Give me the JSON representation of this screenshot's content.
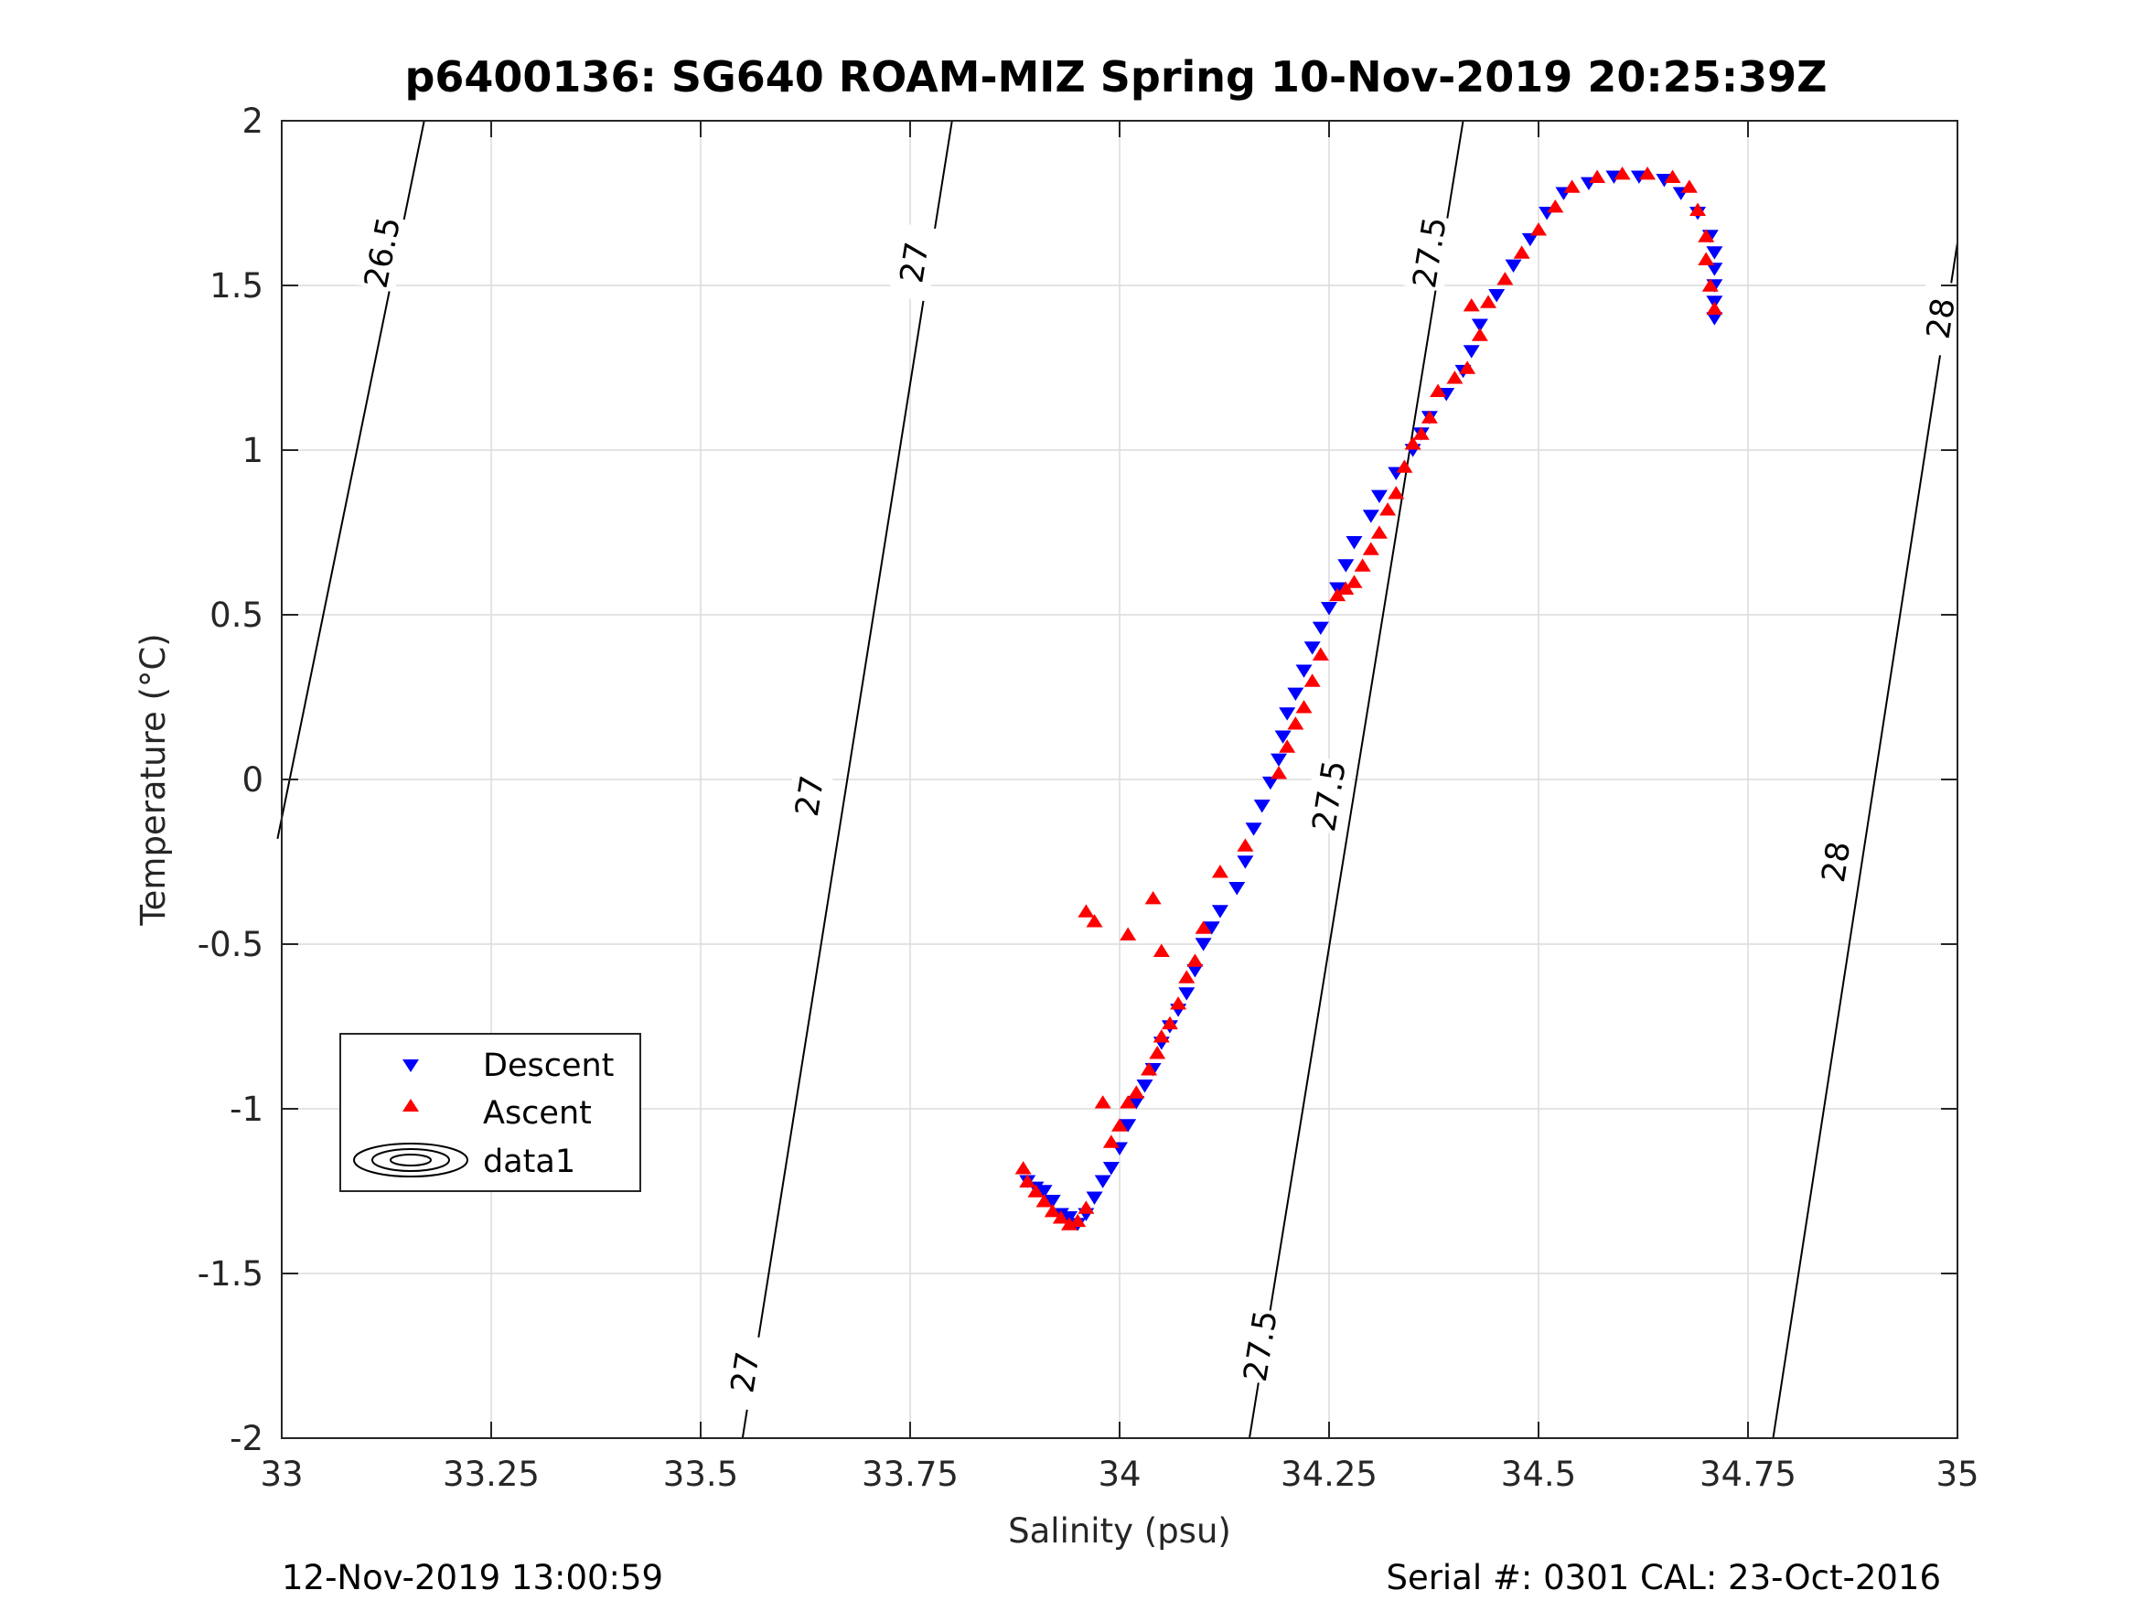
{
  "chart_data": {
    "type": "scatter",
    "title": "p6400136: SG640 ROAM-MIZ Spring 10-Nov-2019 20:25:39Z",
    "xlabel": "Salinity (psu)",
    "ylabel": "Temperature (°C)",
    "xlim": [
      33,
      35
    ],
    "ylim": [
      -2,
      2
    ],
    "grid": true,
    "x_ticks": [
      33,
      33.25,
      33.5,
      33.75,
      34,
      34.25,
      34.5,
      34.75,
      35
    ],
    "x_tick_labels": [
      "33",
      "33.25",
      "33.5",
      "33.75",
      "34",
      "34.25",
      "34.5",
      "34.75",
      "35"
    ],
    "y_ticks": [
      2,
      1.5,
      1,
      0.5,
      0,
      -0.5,
      -1,
      -1.5,
      -2
    ],
    "y_tick_labels": [
      "2",
      "1.5",
      "1",
      "0.5",
      "0",
      "-0.5",
      "-1",
      "-1.5",
      "-2"
    ],
    "legend_position": "lower-left",
    "footer_left": "12-Nov-2019 13:00:59",
    "footer_right": "Serial #: 0301  CAL: 23-Oct-2016",
    "colors": {
      "descent": "#0000ff",
      "ascent": "#ff0000",
      "contour": "#000000",
      "grid": "#dcdcdc"
    },
    "contours": [
      {
        "level": "26.5",
        "line": [
          [
            32.995,
            -0.18
          ],
          [
            33.17,
            2.0
          ]
        ],
        "labels": [
          {
            "x": 33.12,
            "y": 1.6,
            "text": "26.5"
          }
        ]
      },
      {
        "level": "27",
        "line": [
          [
            33.55,
            -2.0
          ],
          [
            33.8,
            2.0
          ]
        ],
        "labels": [
          {
            "x": 33.553,
            "y": -1.8,
            "text": "27"
          },
          {
            "x": 33.63,
            "y": -0.05,
            "text": "27"
          },
          {
            "x": 33.755,
            "y": 1.57,
            "text": "27"
          }
        ]
      },
      {
        "level": "27.5",
        "line": [
          [
            34.155,
            -2.0
          ],
          [
            34.41,
            2.0
          ]
        ],
        "labels": [
          {
            "x": 34.168,
            "y": -1.72,
            "text": "27.5"
          },
          {
            "x": 34.25,
            "y": -0.05,
            "text": "27.5"
          },
          {
            "x": 34.37,
            "y": 1.6,
            "text": "27.5"
          }
        ]
      },
      {
        "level": "28",
        "line": [
          [
            34.78,
            -2.0
          ],
          [
            35.0,
            1.63
          ]
        ],
        "labels": [
          {
            "x": 34.855,
            "y": -0.25,
            "text": "28"
          },
          {
            "x": 34.98,
            "y": 1.4,
            "text": "28"
          }
        ]
      }
    ],
    "series": [
      {
        "name": "Descent",
        "marker": "down-triangle",
        "points": [
          [
            34.71,
            1.4
          ],
          [
            34.71,
            1.45
          ],
          [
            34.71,
            1.5
          ],
          [
            34.71,
            1.55
          ],
          [
            34.71,
            1.6
          ],
          [
            34.705,
            1.65
          ],
          [
            34.69,
            1.72
          ],
          [
            34.67,
            1.78
          ],
          [
            34.65,
            1.82
          ],
          [
            34.62,
            1.83
          ],
          [
            34.59,
            1.83
          ],
          [
            34.56,
            1.81
          ],
          [
            34.53,
            1.78
          ],
          [
            34.51,
            1.72
          ],
          [
            34.49,
            1.64
          ],
          [
            34.47,
            1.56
          ],
          [
            34.45,
            1.47
          ],
          [
            34.43,
            1.38
          ],
          [
            34.42,
            1.3
          ],
          [
            34.41,
            1.24
          ],
          [
            34.39,
            1.17
          ],
          [
            34.37,
            1.1
          ],
          [
            34.36,
            1.05
          ],
          [
            34.35,
            1.0
          ],
          [
            34.33,
            0.93
          ],
          [
            34.31,
            0.86
          ],
          [
            34.3,
            0.8
          ],
          [
            34.28,
            0.72
          ],
          [
            34.27,
            0.65
          ],
          [
            34.26,
            0.58
          ],
          [
            34.25,
            0.52
          ],
          [
            34.24,
            0.46
          ],
          [
            34.23,
            0.4
          ],
          [
            34.22,
            0.33
          ],
          [
            34.21,
            0.26
          ],
          [
            34.2,
            0.2
          ],
          [
            34.195,
            0.13
          ],
          [
            34.19,
            0.06
          ],
          [
            34.18,
            -0.01
          ],
          [
            34.17,
            -0.08
          ],
          [
            34.16,
            -0.15
          ],
          [
            34.15,
            -0.25
          ],
          [
            34.14,
            -0.33
          ],
          [
            34.12,
            -0.4
          ],
          [
            34.11,
            -0.45
          ],
          [
            34.1,
            -0.5
          ],
          [
            34.09,
            -0.58
          ],
          [
            34.08,
            -0.65
          ],
          [
            34.07,
            -0.7
          ],
          [
            34.06,
            -0.75
          ],
          [
            34.05,
            -0.8
          ],
          [
            34.04,
            -0.88
          ],
          [
            34.03,
            -0.93
          ],
          [
            34.02,
            -0.98
          ],
          [
            34.01,
            -1.05
          ],
          [
            34.0,
            -1.12
          ],
          [
            33.99,
            -1.18
          ],
          [
            33.98,
            -1.22
          ],
          [
            33.97,
            -1.27
          ],
          [
            33.96,
            -1.32
          ],
          [
            33.95,
            -1.35
          ],
          [
            33.94,
            -1.33
          ],
          [
            33.93,
            -1.32
          ],
          [
            33.92,
            -1.28
          ],
          [
            33.91,
            -1.25
          ],
          [
            33.9,
            -1.24
          ],
          [
            33.89,
            -1.22
          ]
        ]
      },
      {
        "name": "Ascent",
        "marker": "up-triangle",
        "points": [
          [
            34.71,
            1.43
          ],
          [
            34.705,
            1.5
          ],
          [
            34.7,
            1.58
          ],
          [
            34.7,
            1.65
          ],
          [
            34.69,
            1.73
          ],
          [
            34.68,
            1.8
          ],
          [
            34.66,
            1.83
          ],
          [
            34.63,
            1.84
          ],
          [
            34.6,
            1.84
          ],
          [
            34.57,
            1.83
          ],
          [
            34.54,
            1.8
          ],
          [
            34.52,
            1.74
          ],
          [
            34.5,
            1.67
          ],
          [
            34.48,
            1.6
          ],
          [
            34.46,
            1.52
          ],
          [
            34.44,
            1.45
          ],
          [
            34.42,
            1.44
          ],
          [
            34.43,
            1.35
          ],
          [
            34.415,
            1.25
          ],
          [
            34.4,
            1.22
          ],
          [
            34.38,
            1.18
          ],
          [
            34.37,
            1.1
          ],
          [
            34.36,
            1.05
          ],
          [
            34.35,
            1.02
          ],
          [
            34.34,
            0.95
          ],
          [
            34.33,
            0.87
          ],
          [
            34.32,
            0.82
          ],
          [
            34.31,
            0.75
          ],
          [
            34.3,
            0.7
          ],
          [
            34.29,
            0.65
          ],
          [
            34.28,
            0.6
          ],
          [
            34.27,
            0.58
          ],
          [
            34.26,
            0.56
          ],
          [
            34.24,
            0.38
          ],
          [
            34.23,
            0.3
          ],
          [
            34.22,
            0.22
          ],
          [
            34.21,
            0.17
          ],
          [
            34.2,
            0.1
          ],
          [
            34.19,
            0.02
          ],
          [
            34.15,
            -0.2
          ],
          [
            34.12,
            -0.28
          ],
          [
            34.1,
            -0.45
          ],
          [
            34.09,
            -0.55
          ],
          [
            34.08,
            -0.6
          ],
          [
            34.07,
            -0.68
          ],
          [
            34.06,
            -0.74
          ],
          [
            34.05,
            -0.78
          ],
          [
            34.045,
            -0.83
          ],
          [
            34.035,
            -0.88
          ],
          [
            34.02,
            -0.95
          ],
          [
            34.01,
            -0.98
          ],
          [
            34.0,
            -1.05
          ],
          [
            33.98,
            -0.98
          ],
          [
            33.99,
            -1.1
          ],
          [
            34.04,
            -0.36
          ],
          [
            33.96,
            -0.4
          ],
          [
            33.97,
            -0.43
          ],
          [
            34.01,
            -0.47
          ],
          [
            34.05,
            -0.52
          ],
          [
            33.96,
            -1.3
          ],
          [
            33.95,
            -1.34
          ],
          [
            33.94,
            -1.35
          ],
          [
            33.93,
            -1.33
          ],
          [
            33.92,
            -1.31
          ],
          [
            33.91,
            -1.28
          ],
          [
            33.9,
            -1.25
          ],
          [
            33.89,
            -1.22
          ],
          [
            33.885,
            -1.18
          ]
        ]
      }
    ],
    "legend": [
      "Descent",
      "Ascent",
      "data1"
    ]
  }
}
